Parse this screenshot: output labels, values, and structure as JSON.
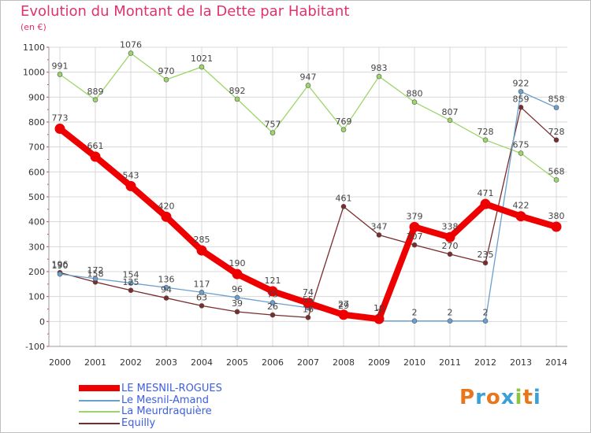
{
  "title": "Evolution du Montant de la Dette par Habitant",
  "unit_label": "(en €)",
  "logo_text": "Proxiti",
  "colors": {
    "title": "#e0336d",
    "grid": "#d8d8d8",
    "le_mesnil_rogues": "#ee0000",
    "le_mesnil_amand": "#6a9fd0",
    "la_meurdraquiere": "#9cd66a",
    "equilly": "#7a2c2c",
    "legend_text": "#3c5ee0"
  },
  "chart_data": {
    "type": "line",
    "title": "Evolution du Montant de la Dette par Habitant",
    "ylabel": "(en €)",
    "xlabel": "",
    "ylim": [
      -100,
      1100
    ],
    "yticks": [
      -100,
      0,
      100,
      200,
      300,
      400,
      500,
      600,
      700,
      800,
      900,
      1000,
      1100
    ],
    "grid": true,
    "legend_position": "bottom-left",
    "x": [
      "2000",
      "2001",
      "2002",
      "2003",
      "2004",
      "2005",
      "2006",
      "2007",
      "2008",
      "2009",
      "2010",
      "2011",
      "2012",
      "2013",
      "2014"
    ],
    "series": [
      {
        "name": "LE MESNIL-ROGUES",
        "color": "#ee0000",
        "values": [
          773,
          661,
          543,
          420,
          285,
          190,
          121,
          74,
          27,
          10,
          379,
          338,
          471,
          422,
          380
        ],
        "labels": [
          "773",
          "661",
          "543",
          "420",
          "285",
          "190",
          "121",
          "74",
          "27",
          "10",
          "379",
          "338",
          "471",
          "422",
          "380"
        ]
      },
      {
        "name": "Le Mesnil-Amand",
        "color": "#6a9fd0",
        "values": [
          190,
          172,
          154,
          136,
          117,
          96,
          75,
          55,
          29,
          2,
          2,
          2,
          2,
          922,
          858
        ],
        "labels": [
          "190",
          "172",
          "154",
          "136",
          "117",
          "96",
          "75",
          "55",
          "29",
          "2",
          "2",
          "2",
          "2",
          "922",
          "858"
        ]
      },
      {
        "name": "La Meurdraquière",
        "color": "#9cd66a",
        "values": [
          991,
          889,
          1076,
          970,
          1021,
          892,
          757,
          947,
          769,
          983,
          880,
          807,
          728,
          675,
          568
        ],
        "labels": [
          "991",
          "889",
          "1076",
          "970",
          "1021",
          "892",
          "757",
          "947",
          "769",
          "983",
          "880",
          "807",
          "728",
          "675",
          "568"
        ]
      },
      {
        "name": "Equilly",
        "color": "#7a2c2c",
        "values": [
          196,
          158,
          125,
          94,
          63,
          39,
          26,
          16,
          461,
          347,
          307,
          270,
          235,
          859,
          728
        ],
        "labels": [
          "196",
          "158",
          "125",
          "94",
          "63",
          "39",
          "26",
          "16",
          "461",
          "347",
          "307",
          "270",
          "235",
          "859",
          "728"
        ]
      }
    ]
  }
}
